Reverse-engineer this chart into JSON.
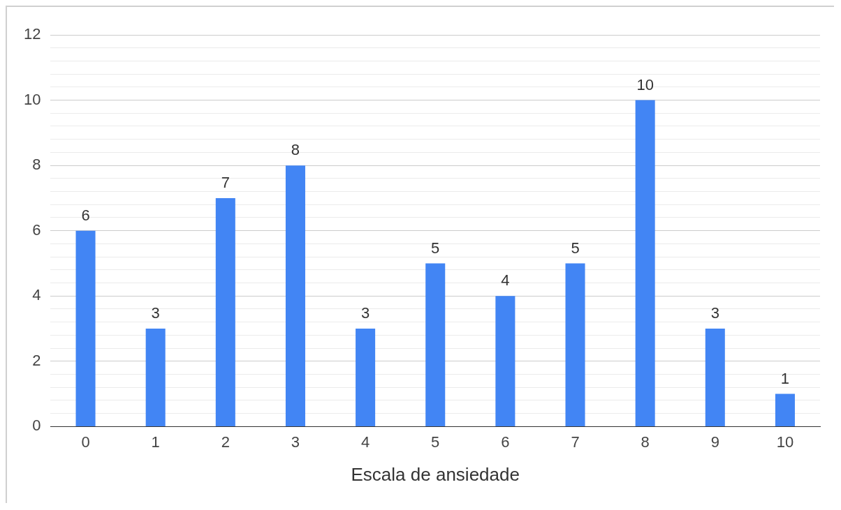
{
  "chart_data": {
    "type": "bar",
    "xlabel": "Escala de ansiedade",
    "categories": [
      "0",
      "1",
      "2",
      "3",
      "4",
      "5",
      "6",
      "7",
      "8",
      "9",
      "10"
    ],
    "values": [
      6,
      3,
      7,
      8,
      3,
      5,
      4,
      5,
      10,
      3,
      1
    ],
    "color": "#4285f4",
    "ylim": [
      0,
      12
    ],
    "yticks": [
      0,
      {
        "value": 0.4,
        "label": null
      },
      {
        "value": 0.8,
        "label": null
      },
      {
        "value": 1.2,
        "label": null
      },
      {
        "value": 1.6,
        "label": null
      },
      2,
      {
        "value": 2.4,
        "label": null
      },
      {
        "value": 2.8,
        "label": null
      },
      {
        "value": 3.2,
        "label": null
      },
      {
        "value": 3.6,
        "label": null
      },
      4,
      {
        "value": 4.4,
        "label": null
      },
      {
        "value": 4.8,
        "label": null
      },
      {
        "value": 5.2,
        "label": null
      },
      {
        "value": 5.6,
        "label": null
      },
      6,
      {
        "value": 6.4,
        "label": null
      },
      {
        "value": 6.8,
        "label": null
      },
      {
        "value": 7.2,
        "label": null
      },
      {
        "value": 7.6,
        "label": null
      },
      8,
      {
        "value": 8.4,
        "label": null
      },
      {
        "value": 8.8,
        "label": null
      },
      {
        "value": 9.2,
        "label": null
      },
      {
        "value": 9.6,
        "label": null
      },
      10,
      {
        "value": 10.4,
        "label": null
      },
      {
        "value": 10.8,
        "label": null
      },
      {
        "value": 11.2,
        "label": null
      },
      {
        "value": 11.6,
        "label": null
      },
      12
    ],
    "grid": "y",
    "data_labels": true,
    "legend": false
  }
}
